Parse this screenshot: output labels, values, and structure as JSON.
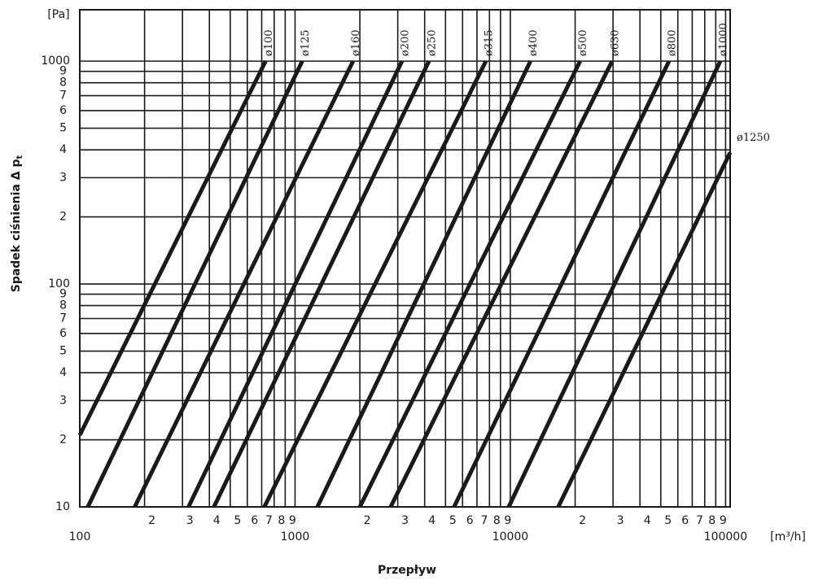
{
  "chart_data": {
    "type": "line",
    "xlabel": "Przepływ",
    "ylabel": "Spadek ciśnienia Δ p",
    "ylabel_subscript": "t",
    "x_unit": "[m³/h]",
    "y_unit": "[Pa]",
    "xscale": "log",
    "yscale": "log",
    "grid": true,
    "xlim": [
      100,
      105000
    ],
    "ylim": [
      10,
      1700
    ],
    "xticks": [
      100,
      {
        "value": 200,
        "label": "2"
      },
      {
        "value": 300,
        "label": "3"
      },
      {
        "value": 400,
        "label": "4"
      },
      {
        "value": 500,
        "label": "5"
      },
      {
        "value": 600,
        "label": "6"
      },
      {
        "value": 700,
        "label": "7"
      },
      {
        "value": 800,
        "label": "8"
      },
      {
        "value": 900,
        "label": "9"
      },
      1000,
      {
        "value": 2000,
        "label": "2"
      },
      {
        "value": 3000,
        "label": "3"
      },
      {
        "value": 4000,
        "label": "4"
      },
      {
        "value": 5000,
        "label": "5"
      },
      {
        "value": 6000,
        "label": "6"
      },
      {
        "value": 7000,
        "label": "7"
      },
      {
        "value": 8000,
        "label": "8"
      },
      {
        "value": 9000,
        "label": "9"
      },
      10000,
      {
        "value": 20000,
        "label": "2"
      },
      {
        "value": 30000,
        "label": "3"
      },
      {
        "value": 40000,
        "label": "4"
      },
      {
        "value": 50000,
        "label": "5"
      },
      {
        "value": 60000,
        "label": "6"
      },
      {
        "value": 70000,
        "label": "7"
      },
      {
        "value": 80000,
        "label": "8"
      },
      {
        "value": 90000,
        "label": "9"
      },
      100000
    ],
    "yticks": [
      10,
      {
        "value": 20,
        "label": "2"
      },
      {
        "value": 30,
        "label": "3"
      },
      {
        "value": 40,
        "label": "4"
      },
      {
        "value": 50,
        "label": "5"
      },
      {
        "value": 60,
        "label": "6"
      },
      {
        "value": 70,
        "label": "7"
      },
      {
        "value": 80,
        "label": "8"
      },
      {
        "value": 90,
        "label": "9"
      },
      100,
      {
        "value": 200,
        "label": "2"
      },
      {
        "value": 300,
        "label": "3"
      },
      {
        "value": 400,
        "label": "4"
      },
      {
        "value": 500,
        "label": "5"
      },
      {
        "value": 600,
        "label": "6"
      },
      {
        "value": 700,
        "label": "7"
      },
      {
        "value": 800,
        "label": "8"
      },
      {
        "value": 900,
        "label": "9"
      },
      1000
    ],
    "series": [
      {
        "name": "ø100",
        "color": "#1a1a1a",
        "x": [
          100,
          730
        ],
        "values": [
          21,
          1000
        ]
      },
      {
        "name": "ø125",
        "color": "#1a1a1a",
        "x": [
          109,
          1080
        ],
        "values": [
          10,
          1000
        ]
      },
      {
        "name": "ø160",
        "color": "#1a1a1a",
        "x": [
          180,
          1860
        ],
        "values": [
          10,
          1000
        ]
      },
      {
        "name": "ø200",
        "color": "#1a1a1a",
        "x": [
          320,
          3140
        ],
        "values": [
          10,
          1000
        ]
      },
      {
        "name": "ø250",
        "color": "#1a1a1a",
        "x": [
          420,
          4190
        ],
        "values": [
          10,
          1000
        ]
      },
      {
        "name": "ø315",
        "color": "#1a1a1a",
        "x": [
          720,
          7700
        ],
        "values": [
          10,
          1000
        ]
      },
      {
        "name": "ø400",
        "color": "#1a1a1a",
        "x": [
          1270,
          12400
        ],
        "values": [
          10,
          1000
        ]
      },
      {
        "name": "ø500",
        "color": "#1a1a1a",
        "x": [
          2000,
          21100
        ],
        "values": [
          10,
          1000
        ]
      },
      {
        "name": "ø630",
        "color": "#1a1a1a",
        "x": [
          2780,
          29700
        ],
        "values": [
          10,
          1000
        ]
      },
      {
        "name": "ø800",
        "color": "#1a1a1a",
        "x": [
          5480,
          54600
        ],
        "values": [
          10,
          1000
        ]
      },
      {
        "name": "ø1000",
        "color": "#1a1a1a",
        "x": [
          9830,
          94500
        ],
        "values": [
          10,
          1000
        ]
      },
      {
        "name": "ø1250",
        "color": "#1a1a1a",
        "x": [
          16700,
          105000
        ],
        "values": [
          10,
          389
        ]
      }
    ]
  }
}
